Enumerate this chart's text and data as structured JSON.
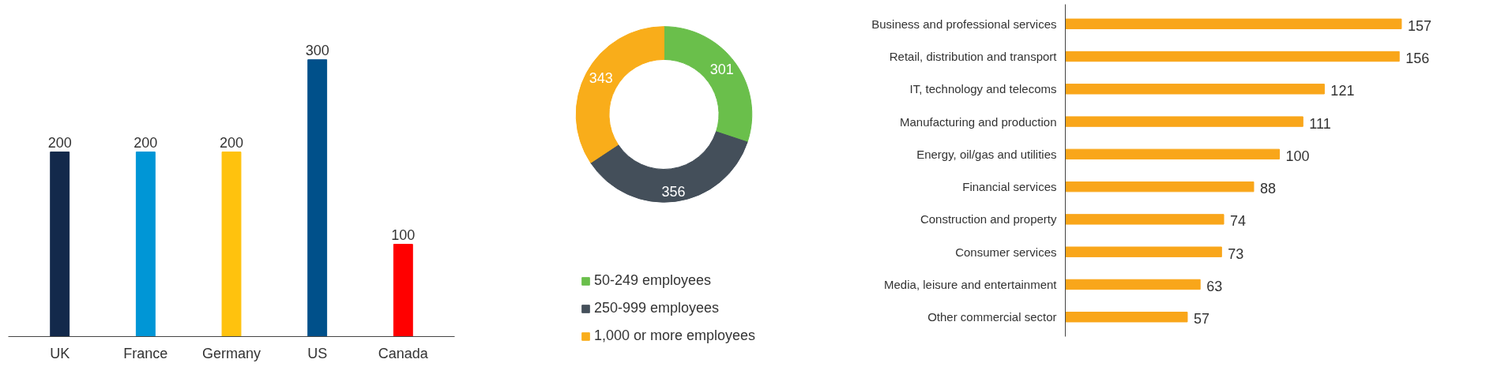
{
  "chart_data": [
    {
      "type": "bar",
      "categories": [
        "UK",
        "France",
        "Germany",
        "US",
        "Canada"
      ],
      "values": [
        200,
        200,
        200,
        300,
        100
      ],
      "colors": [
        "#13294b",
        "#0096d6",
        "#ffc20e",
        "#00508a",
        "#ff0000"
      ],
      "data_labels": true,
      "tick_labels": "x",
      "grid": false,
      "legend": false
    },
    {
      "type": "donut",
      "categories": [
        "50-249 employees",
        "250-999 employees",
        "1,000 or more employees"
      ],
      "values": [
        301,
        356,
        343
      ],
      "colors": [
        "#6abf4b",
        "#444f5a",
        "#f9ad1a"
      ],
      "data_labels": true,
      "legend": "bottom"
    },
    {
      "type": "bar",
      "orientation": "horizontal",
      "categories": [
        "Business and professional services",
        "Retail, distribution and transport",
        "IT, technology and telecoms",
        "Manufacturing and production",
        "Energy, oil/gas and utilities",
        "Financial services",
        "Construction and property",
        "Consumer services",
        "Media, leisure and entertainment",
        "Other commercial sector"
      ],
      "values": [
        157,
        156,
        121,
        111,
        100,
        88,
        74,
        73,
        63,
        57
      ],
      "color": "#f9a61a",
      "data_labels": true,
      "tick_labels": "y",
      "grid": false,
      "legend": false
    }
  ]
}
